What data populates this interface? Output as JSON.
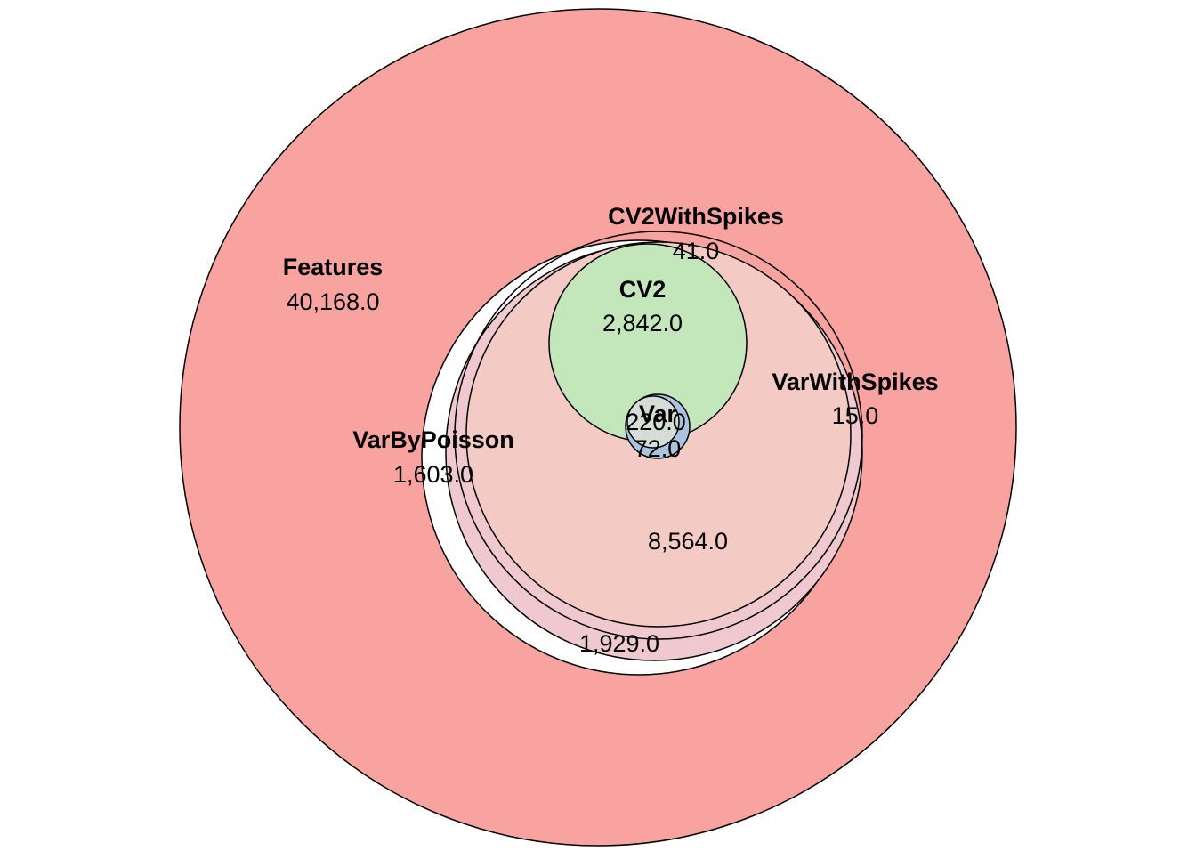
{
  "diagram": {
    "type": "euler",
    "colors": {
      "features": "#f8a39f",
      "var_by_poisson": "#efc9cf",
      "var_with_spikes": "#f3cbc4",
      "cv2": "#c3e7bb",
      "var": "#a9c3e0",
      "outline": "#000000",
      "background": "#ffffff"
    },
    "sets": {
      "features": {
        "name": "Features",
        "count": "40,168.0"
      },
      "cv2_with_spikes": {
        "name": "CV2WithSpikes",
        "count": "41.0"
      },
      "cv2": {
        "name": "CV2",
        "count": "2,842.0"
      },
      "var_with_spikes": {
        "name": "VarWithSpikes",
        "count": "15.0"
      },
      "var_by_poisson": {
        "name": "VarByPoisson",
        "count": "1,603.0"
      },
      "var": {
        "name": "Var",
        "count": "220.0",
        "count_inner": "72.0"
      }
    },
    "regions": {
      "core": "8,564.0",
      "ring": "1,929.0"
    }
  }
}
